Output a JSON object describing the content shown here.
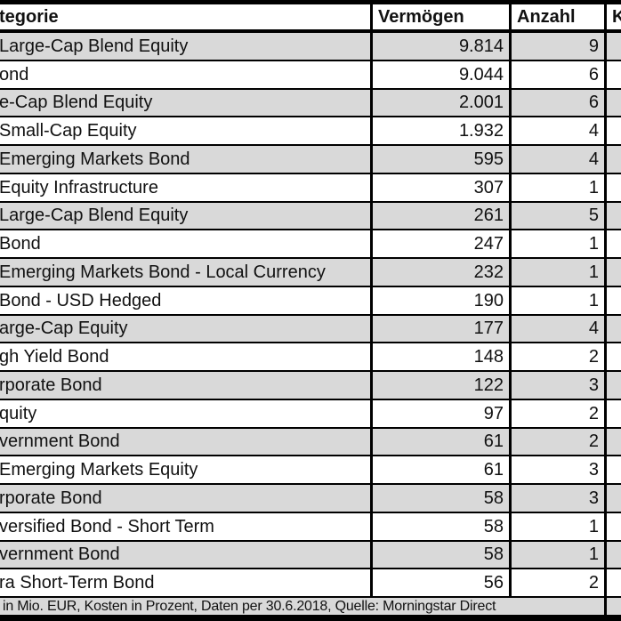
{
  "chart_data": {
    "type": "table",
    "columns": [
      "tegorie",
      "Vermögen",
      "Anzahl",
      "K"
    ],
    "rows": [
      [
        "Large-Cap Blend Equity",
        "9.814",
        "9"
      ],
      [
        "ond",
        "9.044",
        "6"
      ],
      [
        "e-Cap Blend Equity",
        "2.001",
        "6"
      ],
      [
        "Small-Cap Equity",
        "1.932",
        "4"
      ],
      [
        "Emerging Markets Bond",
        "595",
        "4"
      ],
      [
        "Equity Infrastructure",
        "307",
        "1"
      ],
      [
        "Large-Cap Blend Equity",
        "261",
        "5"
      ],
      [
        "Bond",
        "247",
        "1"
      ],
      [
        "Emerging Markets Bond - Local Currency",
        "232",
        "1"
      ],
      [
        "Bond - USD Hedged",
        "190",
        "1"
      ],
      [
        "arge-Cap Equity",
        "177",
        "4"
      ],
      [
        "gh Yield Bond",
        "148",
        "2"
      ],
      [
        "rporate Bond",
        "122",
        "3"
      ],
      [
        "quity",
        "97",
        "2"
      ],
      [
        "vernment Bond",
        "61",
        "2"
      ],
      [
        "Emerging Markets Equity",
        "61",
        "3"
      ],
      [
        "rporate Bond",
        "58",
        "3"
      ],
      [
        "versified Bond - Short Term",
        "58",
        "1"
      ],
      [
        "vernment Bond",
        "58",
        "1"
      ],
      [
        "ra Short-Term Bond",
        "56",
        "2"
      ]
    ],
    "footnote": "in Mio. EUR, Kosten in Prozent, Daten per 30.6.2018, Quelle: Morningstar Direct",
    "layout": {
      "zebra_first_row": "gray",
      "value_alignment": "right",
      "category_alignment": "left"
    },
    "colors": {
      "row_alt_bg": "#d9d9d9",
      "row_bg": "#ffffff",
      "border": "#000000",
      "text": "#111111"
    }
  }
}
